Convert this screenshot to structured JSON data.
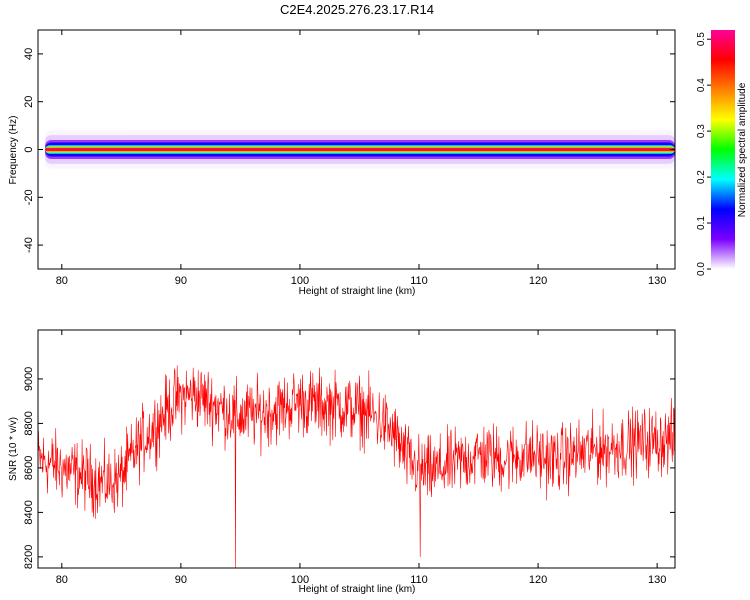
{
  "title": "C2E4.2025.276.23.17.R14",
  "chart_data": [
    {
      "type": "heatmap",
      "xlabel": "Height of straight line (km)",
      "ylabel": "Frequency (Hz)",
      "xlim": [
        78,
        131.5
      ],
      "ylim": [
        -50,
        50
      ],
      "x_ticks": [
        "80",
        "90",
        "100",
        "110",
        "120",
        "130"
      ],
      "y_ticks": [
        "-40",
        "-20",
        "0",
        "20",
        "40"
      ],
      "x_tick_values": [
        80,
        90,
        100,
        110,
        120,
        130
      ],
      "y_tick_values": [
        -40,
        -20,
        0,
        20,
        40
      ],
      "band_x_start": 78.6,
      "band_rows": [
        {
          "freq_from": -8,
          "freq_to": 8,
          "amplitude": 0.005
        },
        {
          "freq_from": -6,
          "freq_to": 6,
          "amplitude": 0.02
        },
        {
          "freq_from": -4,
          "freq_to": 4,
          "amplitude": 0.05
        },
        {
          "freq_from": -3,
          "freq_to": 3,
          "amplitude": 0.1
        },
        {
          "freq_from": -2.5,
          "freq_to": 2.5,
          "amplitude": 0.13
        },
        {
          "freq_from": -1.8,
          "freq_to": 1.8,
          "amplitude": 0.2
        },
        {
          "freq_from": -1.3,
          "freq_to": 1.3,
          "amplitude": 0.3
        },
        {
          "freq_from": -0.9,
          "freq_to": 0.9,
          "amplitude": 0.38
        },
        {
          "freq_from": -0.6,
          "freq_to": 0.6,
          "amplitude": 0.45
        },
        {
          "freq_from": -0.35,
          "freq_to": 0.35,
          "amplitude": 0.5
        }
      ],
      "colorbar": {
        "label": "Normalized spectral amplitude",
        "range": [
          0,
          0.52
        ],
        "ticks": [
          "0.0",
          "0.1",
          "0.2",
          "0.3",
          "0.4",
          "0.5"
        ],
        "tick_values": [
          0,
          0.1,
          0.2,
          0.3,
          0.4,
          0.5
        ],
        "colors": [
          "#ffffff",
          "#7a00ff",
          "#0000ff",
          "#00ffff",
          "#00ff00",
          "#ffff00",
          "#ff8000",
          "#ff0000",
          "#ff0099"
        ]
      }
    },
    {
      "type": "line",
      "xlabel": "Height of straight line (km)",
      "ylabel": "SNR (10 * v/v)",
      "xlim": [
        78,
        131.5
      ],
      "ylim": [
        8150,
        9220
      ],
      "x_ticks": [
        "80",
        "90",
        "100",
        "110",
        "120",
        "130"
      ],
      "y_ticks": [
        "8200",
        "8400",
        "8600",
        "8800",
        "9000"
      ],
      "x_tick_values": [
        80,
        90,
        100,
        110,
        120,
        130
      ],
      "y_tick_values": [
        8200,
        8400,
        8600,
        8800,
        9000
      ],
      "color": "#ff0000",
      "series": [
        {
          "x": [
            78,
            79,
            80,
            81,
            82,
            83,
            84,
            85,
            86,
            87,
            88,
            89,
            90,
            91,
            92,
            93,
            94,
            95,
            96,
            97,
            98,
            99,
            100,
            101,
            102,
            103,
            104,
            105,
            106,
            107,
            108,
            109,
            110,
            111,
            112,
            113,
            114,
            115,
            116,
            117,
            118,
            119,
            120,
            121,
            122,
            123,
            124,
            125,
            126,
            127,
            128,
            129,
            130,
            131.5
          ],
          "y": [
            8640,
            8620,
            8600,
            8580,
            8560,
            8540,
            8530,
            8560,
            8660,
            8740,
            8800,
            8870,
            8920,
            8930,
            8910,
            8880,
            8850,
            8830,
            8840,
            8850,
            8860,
            8880,
            8900,
            8890,
            8880,
            8880,
            8870,
            8860,
            8840,
            8800,
            8740,
            8640,
            8590,
            8580,
            8600,
            8620,
            8640,
            8660,
            8650,
            8640,
            8650,
            8660,
            8650,
            8640,
            8640,
            8660,
            8670,
            8680,
            8690,
            8700,
            8710,
            8720,
            8720,
            8730
          ]
        }
      ],
      "dips": [
        {
          "x": 94.6,
          "y": 8150
        },
        {
          "x": 110.1,
          "y": 8200
        }
      ]
    }
  ]
}
